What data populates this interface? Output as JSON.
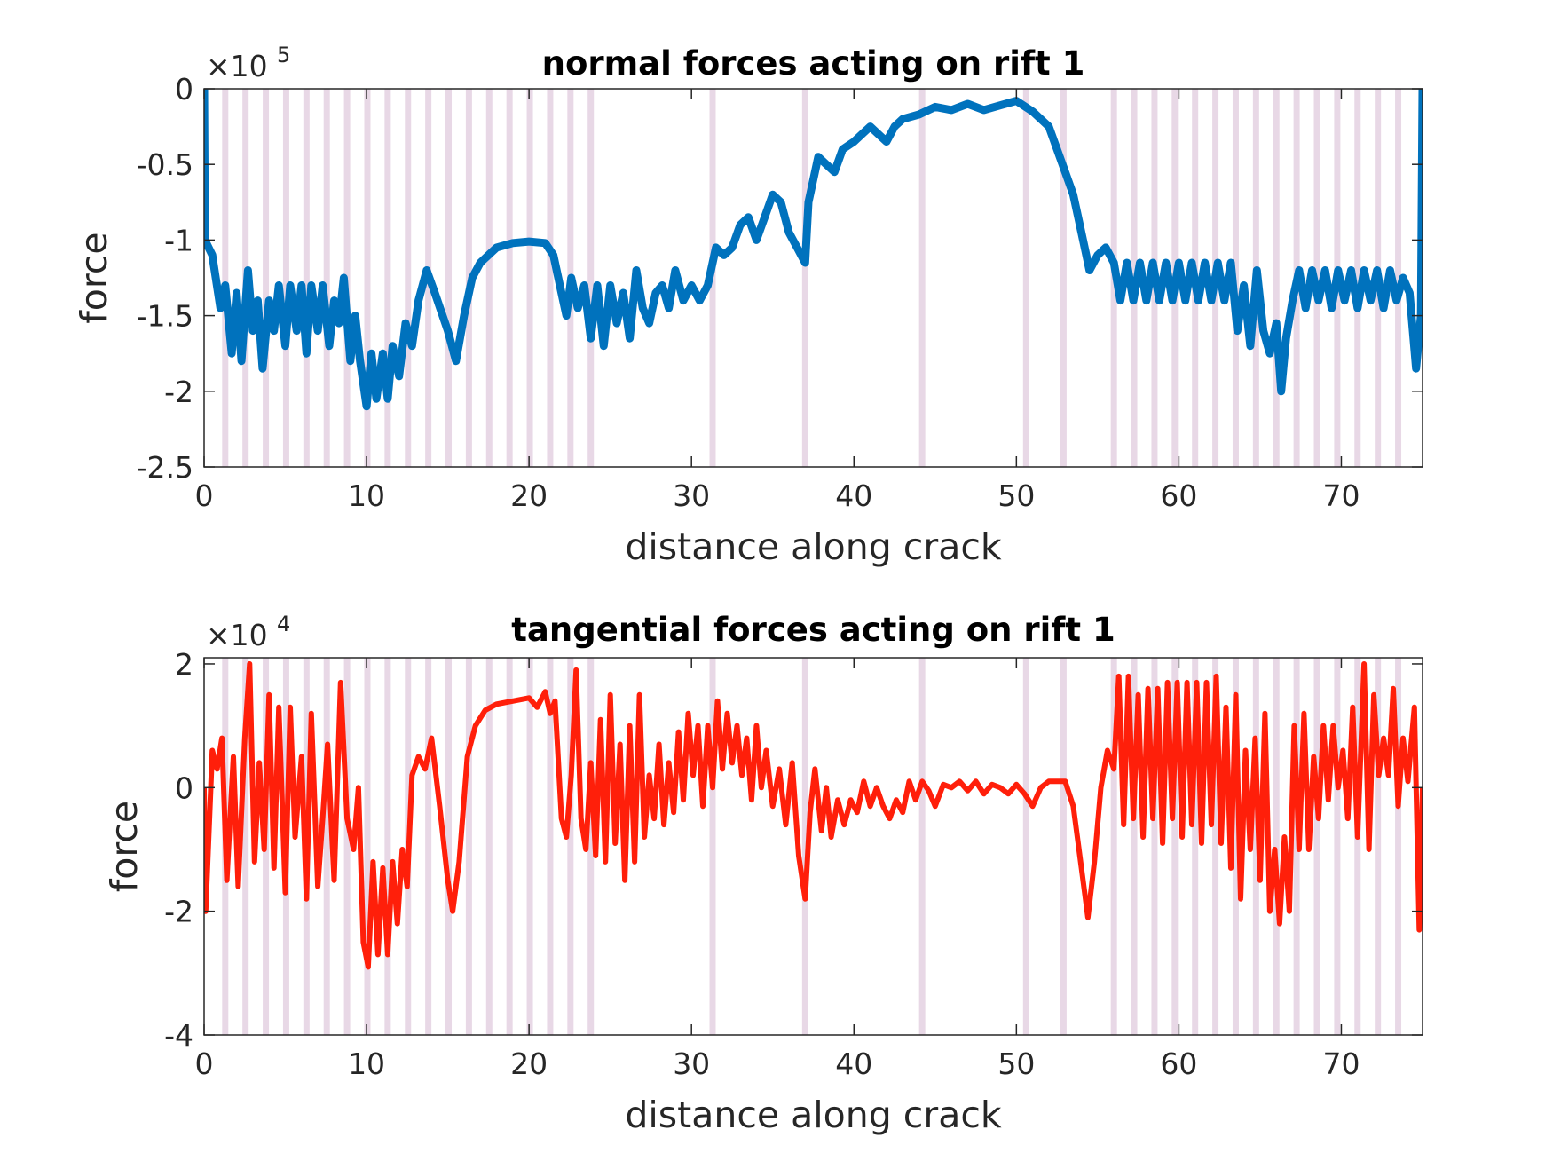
{
  "chart_data": [
    {
      "type": "line",
      "title": "normal forces acting on rift 1",
      "xlabel": "distance along crack",
      "ylabel": "force",
      "y_multiplier": "×10",
      "y_exponent": "5",
      "color": "#0072bd",
      "band_color": "#e8d8e6",
      "xlim": [
        0,
        75
      ],
      "ylim": [
        -2.5,
        0
      ],
      "xticks": [
        0,
        10,
        20,
        30,
        40,
        50,
        60,
        70
      ],
      "yticks": [
        0,
        -0.5,
        -1,
        -1.5,
        -2,
        -2.5
      ],
      "bands": [
        1.3,
        2.55,
        3.8,
        5.05,
        6.3,
        7.55,
        8.8,
        10.05,
        11.3,
        12.55,
        13.8,
        15.05,
        16.3,
        17.55,
        18.8,
        20.05,
        21.3,
        22.55,
        23.8,
        31.3,
        37.0,
        44.2,
        50.6,
        52.9,
        56.0,
        57.25,
        58.5,
        59.75,
        61.0,
        62.25,
        63.5,
        64.75,
        66.0,
        67.25,
        68.5,
        69.75,
        71.0,
        72.25,
        73.5
      ],
      "x": [
        0,
        0.05,
        0.5,
        1,
        1.3,
        1.7,
        2,
        2.3,
        2.7,
        3,
        3.3,
        3.6,
        4,
        4.3,
        4.6,
        5,
        5.3,
        5.7,
        6,
        6.3,
        6.6,
        7,
        7.3,
        7.7,
        8,
        8.3,
        8.6,
        9,
        9.3,
        9.6,
        10,
        10.3,
        10.6,
        11,
        11.3,
        11.6,
        12,
        12.4,
        12.8,
        13.2,
        13.7,
        14.2,
        15,
        15.5,
        16,
        16.5,
        17,
        18,
        19,
        20,
        21,
        21.5,
        22,
        22.3,
        22.6,
        23,
        23.4,
        23.8,
        24.2,
        24.6,
        25,
        25.4,
        25.8,
        26.2,
        26.6,
        27,
        27.4,
        27.8,
        28.2,
        28.6,
        29,
        29.5,
        30,
        30.5,
        31,
        31.5,
        32,
        32.5,
        33,
        33.5,
        34,
        34.5,
        35,
        35.5,
        36,
        36.5,
        37,
        37.2,
        37.8,
        38.3,
        38.8,
        39.3,
        40,
        40.5,
        41,
        41.5,
        42,
        42.5,
        43,
        44,
        45,
        46,
        47,
        48,
        49,
        50,
        51,
        52,
        53,
        53.5,
        54,
        54.5,
        55,
        55.5,
        56,
        56.4,
        56.8,
        57.2,
        57.6,
        58,
        58.4,
        58.8,
        59.2,
        59.6,
        60,
        60.4,
        60.8,
        61.2,
        61.6,
        62,
        62.4,
        62.8,
        63.2,
        63.6,
        64,
        64.4,
        64.8,
        65.2,
        65.6,
        66,
        66.3,
        66.6,
        67,
        67.4,
        67.8,
        68.2,
        68.6,
        69,
        69.4,
        69.8,
        70.2,
        70.6,
        71,
        71.4,
        71.8,
        72.2,
        72.6,
        73,
        73.4,
        73.8,
        74.2,
        74.6,
        74.9,
        75
      ],
      "values": [
        0,
        -1.0,
        -1.1,
        -1.45,
        -1.3,
        -1.75,
        -1.35,
        -1.8,
        -1.2,
        -1.6,
        -1.4,
        -1.85,
        -1.4,
        -1.6,
        -1.3,
        -1.7,
        -1.3,
        -1.6,
        -1.3,
        -1.75,
        -1.3,
        -1.6,
        -1.3,
        -1.7,
        -1.4,
        -1.55,
        -1.25,
        -1.8,
        -1.5,
        -1.8,
        -2.1,
        -1.75,
        -2.05,
        -1.75,
        -2.05,
        -1.7,
        -1.9,
        -1.55,
        -1.7,
        -1.4,
        -1.2,
        -1.35,
        -1.6,
        -1.8,
        -1.5,
        -1.25,
        -1.15,
        -1.05,
        -1.02,
        -1.01,
        -1.02,
        -1.1,
        -1.35,
        -1.5,
        -1.25,
        -1.45,
        -1.3,
        -1.65,
        -1.3,
        -1.7,
        -1.3,
        -1.55,
        -1.35,
        -1.65,
        -1.2,
        -1.45,
        -1.55,
        -1.35,
        -1.3,
        -1.45,
        -1.2,
        -1.4,
        -1.3,
        -1.4,
        -1.3,
        -1.05,
        -1.1,
        -1.05,
        -0.9,
        -0.85,
        -1.0,
        -0.85,
        -0.7,
        -0.75,
        -0.95,
        -1.05,
        -1.15,
        -0.75,
        -0.45,
        -0.5,
        -0.55,
        -0.4,
        -0.35,
        -0.3,
        -0.25,
        -0.3,
        -0.35,
        -0.25,
        -0.2,
        -0.17,
        -0.12,
        -0.14,
        -0.1,
        -0.14,
        -0.11,
        -0.08,
        -0.15,
        -0.25,
        -0.55,
        -0.7,
        -0.95,
        -1.2,
        -1.1,
        -1.05,
        -1.15,
        -1.4,
        -1.15,
        -1.4,
        -1.15,
        -1.4,
        -1.15,
        -1.4,
        -1.15,
        -1.4,
        -1.15,
        -1.4,
        -1.15,
        -1.4,
        -1.15,
        -1.4,
        -1.15,
        -1.4,
        -1.15,
        -1.6,
        -1.3,
        -1.7,
        -1.2,
        -1.6,
        -1.75,
        -1.55,
        -2.0,
        -1.65,
        -1.4,
        -1.2,
        -1.45,
        -1.2,
        -1.4,
        -1.2,
        -1.45,
        -1.2,
        -1.4,
        -1.2,
        -1.45,
        -1.2,
        -1.4,
        -1.2,
        -1.45,
        -1.2,
        -1.4,
        -1.25,
        -1.35,
        -1.85,
        -1.5,
        0
      ]
    },
    {
      "type": "line",
      "title": "tangential forces acting on rift 1",
      "xlabel": "distance along crack",
      "ylabel": "force",
      "y_multiplier": "×10",
      "y_exponent": "4",
      "color": "#ff1f0a",
      "band_color": "#e8d8e6",
      "xlim": [
        0,
        75
      ],
      "ylim": [
        -4,
        2.1
      ],
      "xticks": [
        0,
        10,
        20,
        30,
        40,
        50,
        60,
        70
      ],
      "yticks": [
        2,
        0,
        -2,
        -4
      ],
      "bands": [
        1.3,
        2.55,
        3.8,
        5.05,
        6.3,
        7.55,
        8.8,
        10.05,
        11.3,
        12.55,
        13.8,
        15.05,
        16.3,
        17.55,
        18.8,
        20.05,
        21.3,
        22.55,
        23.8,
        31.3,
        37.0,
        44.2,
        50.6,
        52.9,
        56.0,
        57.25,
        58.5,
        59.75,
        61.0,
        62.25,
        63.5,
        64.75,
        66.0,
        67.25,
        68.5,
        69.75,
        71.0,
        72.25,
        73.5
      ],
      "x": [
        0,
        0.1,
        0.5,
        0.8,
        1.1,
        1.4,
        1.8,
        2.1,
        2.5,
        2.8,
        3.1,
        3.4,
        3.7,
        4,
        4.3,
        4.6,
        5,
        5.3,
        5.6,
        6,
        6.3,
        6.6,
        7,
        7.3,
        7.6,
        8,
        8.4,
        8.8,
        9.2,
        9.5,
        9.8,
        10.1,
        10.4,
        10.7,
        11,
        11.3,
        11.6,
        11.9,
        12.2,
        12.5,
        12.8,
        13.2,
        13.6,
        14,
        14.5,
        15,
        15.3,
        15.7,
        16.2,
        16.7,
        17.3,
        18,
        19,
        20,
        20.5,
        21,
        21.3,
        21.6,
        22,
        22.3,
        22.6,
        22.9,
        23.2,
        23.5,
        23.8,
        24.1,
        24.4,
        24.7,
        25,
        25.3,
        25.6,
        25.9,
        26.2,
        26.5,
        26.8,
        27.1,
        27.4,
        27.7,
        28,
        28.3,
        28.6,
        28.9,
        29.2,
        29.5,
        29.8,
        30.1,
        30.4,
        30.7,
        31,
        31.3,
        31.6,
        31.9,
        32.2,
        32.5,
        32.8,
        33.1,
        33.4,
        33.7,
        34,
        34.3,
        34.6,
        35,
        35.4,
        35.8,
        36.2,
        36.6,
        37,
        37.3,
        37.6,
        38,
        38.3,
        38.6,
        39,
        39.4,
        39.8,
        40.2,
        40.6,
        41,
        41.4,
        41.8,
        42.2,
        42.6,
        43,
        43.4,
        43.8,
        44.2,
        44.6,
        45,
        45.5,
        46,
        46.5,
        47,
        47.5,
        48,
        48.5,
        49,
        49.5,
        50,
        50.5,
        51,
        51.5,
        52,
        52.5,
        53,
        53.5,
        54,
        54.4,
        54.8,
        55.2,
        55.6,
        56,
        56.3,
        56.6,
        56.9,
        57.2,
        57.5,
        57.8,
        58.1,
        58.4,
        58.7,
        59,
        59.3,
        59.6,
        59.9,
        60.2,
        60.5,
        60.8,
        61.1,
        61.4,
        61.7,
        62,
        62.3,
        62.6,
        62.9,
        63.2,
        63.5,
        63.8,
        64.1,
        64.4,
        64.7,
        65,
        65.3,
        65.6,
        65.9,
        66.2,
        66.5,
        66.8,
        67.1,
        67.4,
        67.7,
        68,
        68.3,
        68.6,
        68.9,
        69.2,
        69.5,
        69.8,
        70.1,
        70.4,
        70.7,
        71,
        71.4,
        71.7,
        72,
        72.3,
        72.6,
        72.9,
        73.2,
        73.5,
        73.8,
        74.1,
        74.5,
        74.8,
        75
      ],
      "values": [
        0,
        -2.0,
        0.6,
        0.3,
        0.8,
        -1.5,
        0.5,
        -1.6,
        0.8,
        2.0,
        -1.2,
        0.4,
        -1.0,
        1.5,
        -1.3,
        1.3,
        -1.7,
        1.3,
        -0.8,
        0.5,
        -1.8,
        1.2,
        -1.6,
        -0.5,
        0.7,
        -1.5,
        1.7,
        -0.5,
        -1.0,
        0.0,
        -2.5,
        -2.9,
        -1.2,
        -2.7,
        -1.3,
        -2.7,
        -1.2,
        -2.2,
        -1.0,
        -1.6,
        0.2,
        0.5,
        0.3,
        0.8,
        -0.3,
        -1.5,
        -2.0,
        -1.2,
        0.5,
        1.0,
        1.25,
        1.35,
        1.4,
        1.45,
        1.3,
        1.55,
        1.2,
        1.4,
        -0.5,
        -0.8,
        0.2,
        1.9,
        -0.5,
        -1.0,
        0.4,
        -1.1,
        1.1,
        -1.2,
        1.5,
        -0.9,
        0.7,
        -1.5,
        1.0,
        -1.2,
        1.5,
        -0.8,
        0.2,
        -0.5,
        0.7,
        -0.6,
        0.4,
        -0.4,
        0.9,
        -0.2,
        1.2,
        0.2,
        1.0,
        -0.3,
        1.0,
        0.0,
        1.4,
        0.3,
        1.2,
        0.4,
        1.0,
        0.2,
        0.8,
        -0.2,
        1.0,
        0.0,
        0.6,
        -0.3,
        0.3,
        -0.6,
        0.4,
        -1.1,
        -1.8,
        -0.4,
        0.3,
        -0.7,
        0.0,
        -0.8,
        -0.2,
        -0.6,
        -0.2,
        -0.4,
        0.1,
        -0.3,
        0.0,
        -0.3,
        -0.5,
        -0.2,
        -0.4,
        0.1,
        -0.2,
        0.1,
        -0.05,
        -0.3,
        0.05,
        0.0,
        0.1,
        -0.05,
        0.1,
        -0.1,
        0.05,
        0.0,
        -0.1,
        0.05,
        -0.1,
        -0.3,
        0.0,
        0.1,
        0.1,
        0.1,
        -0.3,
        -1.3,
        -2.1,
        -1.2,
        0.0,
        0.6,
        0.3,
        1.8,
        -0.6,
        1.8,
        -0.5,
        1.5,
        -0.8,
        1.6,
        -0.5,
        1.6,
        -0.9,
        1.7,
        -0.5,
        1.7,
        -0.8,
        1.7,
        -0.6,
        1.7,
        -0.9,
        1.7,
        -0.6,
        1.8,
        -0.9,
        1.3,
        -1.3,
        1.5,
        -1.8,
        0.6,
        -1.0,
        0.8,
        -1.5,
        1.2,
        -2.0,
        -1.0,
        -2.2,
        -0.8,
        -2.0,
        1.0,
        -1.0,
        1.2,
        -1.0,
        0.5,
        -0.5,
        1.0,
        -0.2,
        1.0,
        0.0,
        0.6,
        -0.5,
        1.3,
        -0.8,
        2.0,
        -1.0,
        1.5,
        0.2,
        0.8,
        0.2,
        1.6,
        -0.3,
        0.8,
        0.1,
        1.3,
        -2.3,
        0
      ]
    }
  ]
}
